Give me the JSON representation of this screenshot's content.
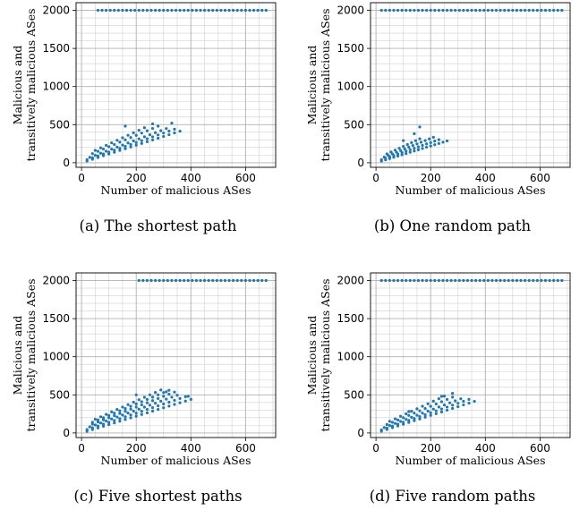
{
  "chart_data": [
    {
      "type": "scatter",
      "caption": "(a) The shortest path",
      "xlabel": "Number of malicious ASes",
      "ylabel": [
        "Malicious and",
        "transitively malicious ASes"
      ],
      "xlim": [
        -20,
        710
      ],
      "ylim": [
        -60,
        2100
      ],
      "xticks": [
        0,
        200,
        400,
        600
      ],
      "yticks": [
        0,
        500,
        1000,
        1500,
        2000
      ],
      "grid": true,
      "color": "#1f77b4",
      "ceiling": {
        "y": 2000,
        "x_start": 60,
        "x_end": 680,
        "step": 15
      },
      "lines": [
        {
          "x0": 20,
          "x1": 360,
          "slope": 1.15,
          "intercept": 0,
          "step": 20
        },
        {
          "x0": 20,
          "x1": 340,
          "slope": 1.25,
          "intercept": 15,
          "step": 20
        },
        {
          "x0": 30,
          "x1": 320,
          "slope": 1.35,
          "intercept": 30,
          "step": 20
        },
        {
          "x0": 40,
          "x1": 280,
          "slope": 1.5,
          "intercept": 60,
          "step": 20
        },
        {
          "x0": 50,
          "x1": 240,
          "slope": 1.65,
          "intercept": 80,
          "step": 20
        }
      ],
      "outliers": [
        [
          160,
          480
        ],
        [
          260,
          510
        ],
        [
          330,
          520
        ]
      ]
    },
    {
      "type": "scatter",
      "caption": "(b) One random path",
      "xlabel": "Number of malicious ASes",
      "ylabel": [
        "Malicious and",
        "transitively malicious ASes"
      ],
      "xlim": [
        -20,
        710
      ],
      "ylim": [
        -60,
        2100
      ],
      "xticks": [
        0,
        200,
        400,
        600
      ],
      "yticks": [
        0,
        500,
        1000,
        1500,
        2000
      ],
      "grid": true,
      "color": "#1f77b4",
      "ceiling": {
        "y": 2000,
        "x_start": 20,
        "x_end": 690,
        "step": 15
      },
      "lines": [
        {
          "x0": 20,
          "x1": 270,
          "slope": 1.1,
          "intercept": 0,
          "step": 15
        },
        {
          "x0": 20,
          "x1": 240,
          "slope": 1.25,
          "intercept": 15,
          "step": 15
        },
        {
          "x0": 30,
          "x1": 210,
          "slope": 1.45,
          "intercept": 30,
          "step": 15
        },
        {
          "x0": 40,
          "x1": 170,
          "slope": 1.65,
          "intercept": 50,
          "step": 15
        }
      ],
      "outliers": [
        [
          160,
          470
        ],
        [
          100,
          290
        ],
        [
          140,
          380
        ]
      ]
    },
    {
      "type": "scatter",
      "caption": "(c) Five shortest paths",
      "xlabel": "Number of malicious ASes",
      "ylabel": [
        "Malicious and",
        "transitively malicious ASes"
      ],
      "xlim": [
        -20,
        710
      ],
      "ylim": [
        -60,
        2100
      ],
      "xticks": [
        0,
        200,
        400,
        600
      ],
      "yticks": [
        0,
        500,
        1000,
        1500,
        2000
      ],
      "grid": true,
      "color": "#1f77b4",
      "ceiling": {
        "y": 2000,
        "x_start": 210,
        "x_end": 680,
        "step": 15
      },
      "lines": [
        {
          "x0": 20,
          "x1": 400,
          "slope": 1.1,
          "intercept": 0,
          "step": 20
        },
        {
          "x0": 20,
          "x1": 380,
          "slope": 1.2,
          "intercept": 20,
          "step": 20
        },
        {
          "x0": 30,
          "x1": 360,
          "slope": 1.3,
          "intercept": 40,
          "step": 20
        },
        {
          "x0": 40,
          "x1": 340,
          "slope": 1.4,
          "intercept": 60,
          "step": 20
        },
        {
          "x0": 40,
          "x1": 320,
          "slope": 1.5,
          "intercept": 80,
          "step": 20
        },
        {
          "x0": 50,
          "x1": 300,
          "slope": 1.6,
          "intercept": 100,
          "step": 20
        }
      ],
      "outliers": [
        [
          200,
          500
        ],
        [
          310,
          540
        ],
        [
          390,
          480
        ]
      ]
    },
    {
      "type": "scatter",
      "caption": "(d) Five random paths",
      "xlabel": "Number of malicious ASes",
      "ylabel": [
        "Malicious and",
        "transitively malicious ASes"
      ],
      "xlim": [
        -20,
        710
      ],
      "ylim": [
        -60,
        2100
      ],
      "xticks": [
        0,
        200,
        400,
        600
      ],
      "yticks": [
        0,
        500,
        1000,
        1500,
        2000
      ],
      "grid": true,
      "color": "#1f77b4",
      "ceiling": {
        "y": 2000,
        "x_start": 20,
        "x_end": 690,
        "step": 15
      },
      "lines": [
        {
          "x0": 20,
          "x1": 360,
          "slope": 1.15,
          "intercept": 0,
          "step": 20
        },
        {
          "x0": 20,
          "x1": 340,
          "slope": 1.25,
          "intercept": 15,
          "step": 20
        },
        {
          "x0": 30,
          "x1": 320,
          "slope": 1.35,
          "intercept": 30,
          "step": 20
        },
        {
          "x0": 40,
          "x1": 290,
          "slope": 1.5,
          "intercept": 50,
          "step": 20
        },
        {
          "x0": 50,
          "x1": 250,
          "slope": 1.65,
          "intercept": 70,
          "step": 20
        }
      ],
      "outliers": [
        [
          280,
          520
        ],
        [
          120,
          280
        ],
        [
          240,
          480
        ]
      ]
    }
  ]
}
